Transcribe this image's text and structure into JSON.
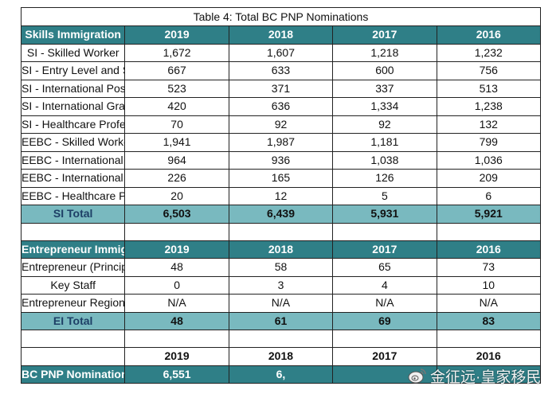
{
  "title": "Table 4: Total BC PNP Nominations",
  "years": [
    "2019",
    "2018",
    "2017",
    "2016"
  ],
  "skills": {
    "header": "Skills Immigration",
    "rows": [
      {
        "label": "SI - Skilled Worker",
        "values": [
          "1,672",
          "1,607",
          "1,218",
          "1,232"
        ]
      },
      {
        "label": "SI - Entry Level and Semi-Skilled (ELSS)",
        "values": [
          "667",
          "633",
          "600",
          "756"
        ]
      },
      {
        "label": "SI - International Post-Graduate",
        "values": [
          "523",
          "371",
          "337",
          "513"
        ]
      },
      {
        "label": "SI - International Graduate",
        "values": [
          "420",
          "636",
          "1,334",
          "1,238"
        ]
      },
      {
        "label": "SI - Healthcare Professional",
        "values": [
          "70",
          "92",
          "92",
          "132"
        ]
      },
      {
        "label": "EEBC - Skilled Worker",
        "values": [
          "1,941",
          "1,987",
          "1,181",
          "799"
        ]
      },
      {
        "label": "EEBC - International Graduate",
        "values": [
          "964",
          "936",
          "1,038",
          "1,036"
        ]
      },
      {
        "label": "EEBC - International Post-Graduate",
        "values": [
          "226",
          "165",
          "126",
          "209"
        ]
      },
      {
        "label": "EEBC - Healthcare Professional",
        "values": [
          "20",
          "12",
          "5",
          "6"
        ]
      }
    ],
    "total": {
      "label": "SI Total",
      "values": [
        "6,503",
        "6,439",
        "5,931",
        "5,921"
      ]
    }
  },
  "entrepreneur": {
    "header": "Entrepreneur Immigration",
    "rows": [
      {
        "label": "Entrepreneur (Principal Applicant)",
        "values": [
          "48",
          "58",
          "65",
          "73"
        ]
      },
      {
        "label": "Key Staff",
        "values": [
          "0",
          "3",
          "4",
          "10"
        ]
      },
      {
        "label": "Entrepreneur Regional Pilot",
        "values": [
          "N/A",
          "N/A",
          "N/A",
          "N/A"
        ]
      }
    ],
    "total": {
      "label": "EI Total",
      "values": [
        "48",
        "61",
        "69",
        "83"
      ]
    }
  },
  "grand_total": {
    "label": "BC PNP Nominations Total",
    "values": [
      "6,551",
      "6,",
      "",
      ""
    ]
  },
  "watermark": {
    "text": "金征远·皇家移民",
    "icon": "weibo-icon"
  }
}
